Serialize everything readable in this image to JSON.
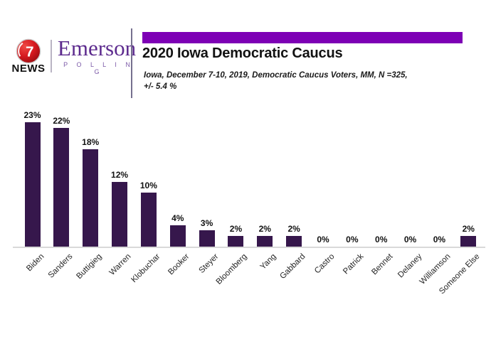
{
  "header": {
    "station": {
      "number": "7",
      "name": "NEWS"
    },
    "pollster": {
      "name": "Emerson",
      "sub": "P O L L I N G"
    },
    "title": "2020 Iowa Democratic Caucus",
    "subtitle_line1": "Iowa, December 7-10, 2019, Democratic Caucus Voters, MM, N =325,",
    "subtitle_line2": "+/- 5.4 %"
  },
  "colors": {
    "bar": "#36174C",
    "banner": "#7D00B5",
    "emerson_purple": "#5D2B8E",
    "news_red": "#D6191F",
    "axis_line": "#D9D9D9",
    "divider": "#76708F"
  },
  "chart_data": {
    "type": "bar",
    "categories": [
      "Biden",
      "Sanders",
      "Buttigieg",
      "Warren",
      "Klobuchar",
      "Booker",
      "Steyer",
      "Bloomberg",
      "Yang",
      "Gabbard",
      "Castro",
      "Patrick",
      "Bennet",
      "Delaney",
      "Williamson",
      "Someone Else"
    ],
    "values": [
      23,
      22,
      18,
      12,
      10,
      4,
      3,
      2,
      2,
      2,
      0,
      0,
      0,
      0,
      0,
      2
    ],
    "value_labels": [
      "23%",
      "22%",
      "18%",
      "12%",
      "10%",
      "4%",
      "3%",
      "2%",
      "2%",
      "2%",
      "0%",
      "0%",
      "0%",
      "0%",
      "0%",
      "2%"
    ],
    "title": "2020 Iowa Democratic Caucus",
    "xlabel": "",
    "ylabel": "",
    "ylim": [
      0,
      25
    ],
    "grid": false,
    "legend": false,
    "bar_color": "#36174C",
    "data_label_format": "percent"
  }
}
